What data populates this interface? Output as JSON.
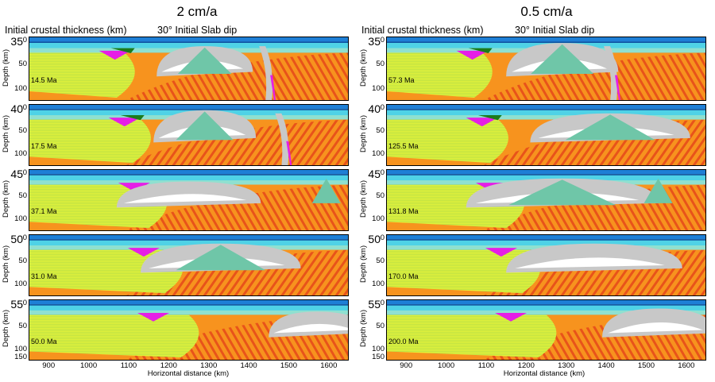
{
  "columns": [
    {
      "title": "2 cm/a",
      "thickness_header": "Initial crustal thickness (km)",
      "dip_header": "30° Initial Slab dip",
      "x_axis_label": "Horizontal distance (km)",
      "x_ticks": [
        "900",
        "1000",
        "1100",
        "1200",
        "1300",
        "1400",
        "1500",
        "1600"
      ],
      "panels": [
        {
          "thickness": "35",
          "age": "14.5 Ma",
          "y_ticks": [
            "0",
            "50",
            "100"
          ],
          "y_label": "Depth (km)"
        },
        {
          "thickness": "40",
          "age": "17.5 Ma",
          "y_ticks": [
            "0",
            "50",
            "100"
          ],
          "y_label": "Depth (km)"
        },
        {
          "thickness": "45",
          "age": "37.1 Ma",
          "y_ticks": [
            "0",
            "50",
            "100"
          ],
          "y_label": "Depth (km)"
        },
        {
          "thickness": "50",
          "age": "31.0 Ma",
          "y_ticks": [
            "0",
            "50",
            "100"
          ],
          "y_label": "Depth (km)"
        },
        {
          "thickness": "55",
          "age": "50.0 Ma",
          "y_ticks": [
            "0",
            "50",
            "100",
            "150"
          ],
          "y_label": "Depth (km)"
        }
      ]
    },
    {
      "title": "0.5 cm/a",
      "thickness_header": "Initial crustal thickness (km)",
      "dip_header": "30° Initial Slab dip",
      "x_axis_label": "Horizontal distance (km)",
      "x_ticks": [
        "900",
        "1000",
        "1100",
        "1200",
        "1300",
        "1400",
        "1500",
        "1600"
      ],
      "panels": [
        {
          "thickness": "35",
          "age": "57.3 Ma",
          "y_ticks": [
            "0",
            "50",
            "100"
          ],
          "y_label": "Depth (km)"
        },
        {
          "thickness": "40",
          "age": "125.5 Ma",
          "y_ticks": [
            "0",
            "50",
            "100"
          ],
          "y_label": "Depth (km)"
        },
        {
          "thickness": "45",
          "age": "131.8 Ma",
          "y_ticks": [
            "0",
            "50",
            "100"
          ],
          "y_label": "Depth (km)"
        },
        {
          "thickness": "50",
          "age": "170.0 Ma",
          "y_ticks": [
            "0",
            "50",
            "100"
          ],
          "y_label": "Depth (km)"
        },
        {
          "thickness": "55",
          "age": "200.0 Ma",
          "y_ticks": [
            "0",
            "50",
            "100",
            "150"
          ],
          "y_label": "Depth (km)"
        }
      ]
    }
  ],
  "colors": {
    "water": "#1e7fd6",
    "crust_cyan": "#4fd2e6",
    "crust_light": "#8fe0d0",
    "lithosphere_yellow": "#e3f23a",
    "mantle_orange": "#f7931e",
    "mantle_red": "#e8531a",
    "sediment_magenta": "#e61ee6",
    "sediment_green": "#1c7a1c",
    "plume_gray": "#c8c8c8",
    "plume_white": "#ffffff",
    "plume_core": "#6fc6a8"
  }
}
